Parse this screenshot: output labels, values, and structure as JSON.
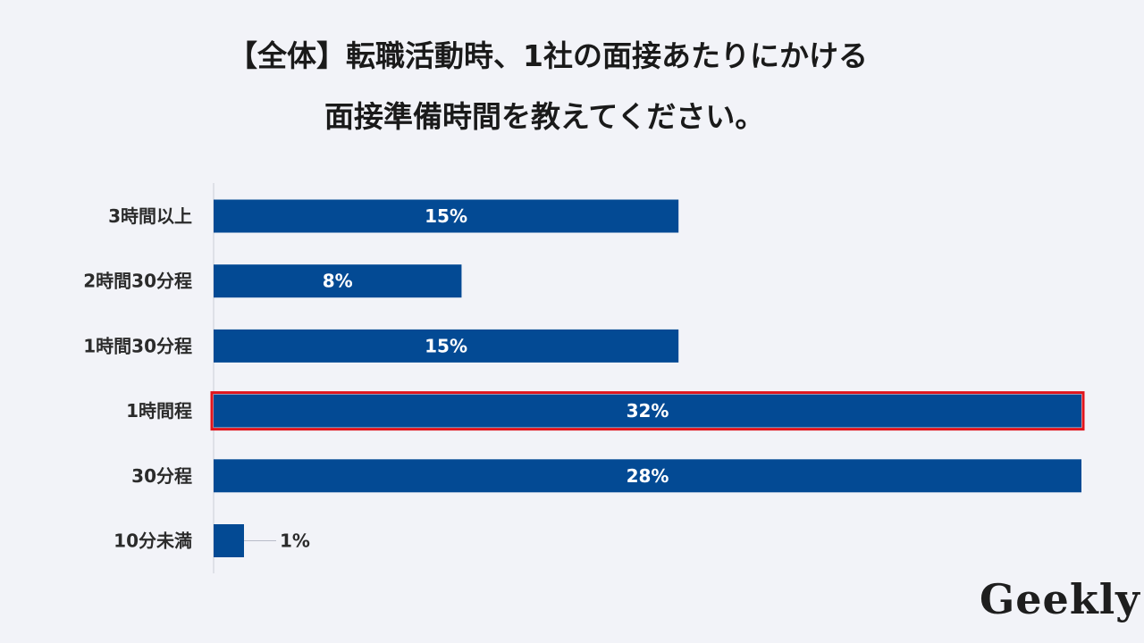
{
  "title": {
    "line1": "【全体】転職活動時、1社の面接あたりにかける",
    "line2": "面接準備時間を教えてください。"
  },
  "logo": "Geekly",
  "colors": {
    "bar": "#034a94",
    "highlight_border": "#e0141c",
    "background": "#f2f3f8",
    "axis": "#c9ccd6"
  },
  "chart_data": {
    "type": "bar",
    "orientation": "horizontal",
    "categories": [
      "3時間以上",
      "2時間30分程",
      "1時間30分程",
      "1時間程",
      "30分程",
      "10分未満"
    ],
    "values": [
      15,
      8,
      15,
      32,
      28,
      1
    ],
    "value_labels": [
      "15%",
      "8%",
      "15%",
      "32%",
      "28%",
      "1%"
    ],
    "highlighted_category": "1時間程",
    "grid": false
  }
}
